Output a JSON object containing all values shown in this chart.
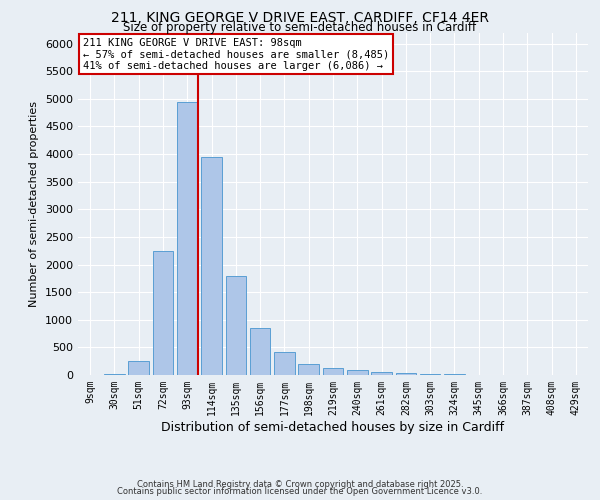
{
  "title_line1": "211, KING GEORGE V DRIVE EAST, CARDIFF, CF14 4ER",
  "title_line2": "Size of property relative to semi-detached houses in Cardiff",
  "xlabel": "Distribution of semi-detached houses by size in Cardiff",
  "ylabel": "Number of semi-detached properties",
  "bar_labels": [
    "9sqm",
    "30sqm",
    "51sqm",
    "72sqm",
    "93sqm",
    "114sqm",
    "135sqm",
    "156sqm",
    "177sqm",
    "198sqm",
    "219sqm",
    "240sqm",
    "261sqm",
    "282sqm",
    "303sqm",
    "324sqm",
    "345sqm",
    "366sqm",
    "387sqm",
    "408sqm",
    "429sqm"
  ],
  "bar_values": [
    5,
    10,
    255,
    2250,
    4950,
    3950,
    1800,
    850,
    415,
    200,
    130,
    90,
    50,
    30,
    15,
    10,
    5,
    3,
    2,
    1,
    1
  ],
  "bar_color": "#aec6e8",
  "bar_edge_color": "#5a9fd4",
  "background_color": "#e8eef4",
  "grid_color": "#ffffff",
  "property_label": "211 KING GEORGE V DRIVE EAST: 98sqm",
  "pct_smaller": 57,
  "n_smaller": 8485,
  "pct_larger": 41,
  "n_larger": 6086,
  "vline_color": "#cc0000",
  "annotation_box_color": "#cc0000",
  "ylim": [
    0,
    6200
  ],
  "yticks": [
    0,
    500,
    1000,
    1500,
    2000,
    2500,
    3000,
    3500,
    4000,
    4500,
    5000,
    5500,
    6000
  ],
  "footer_line1": "Contains HM Land Registry data © Crown copyright and database right 2025.",
  "footer_line2": "Contains public sector information licensed under the Open Government Licence v3.0."
}
